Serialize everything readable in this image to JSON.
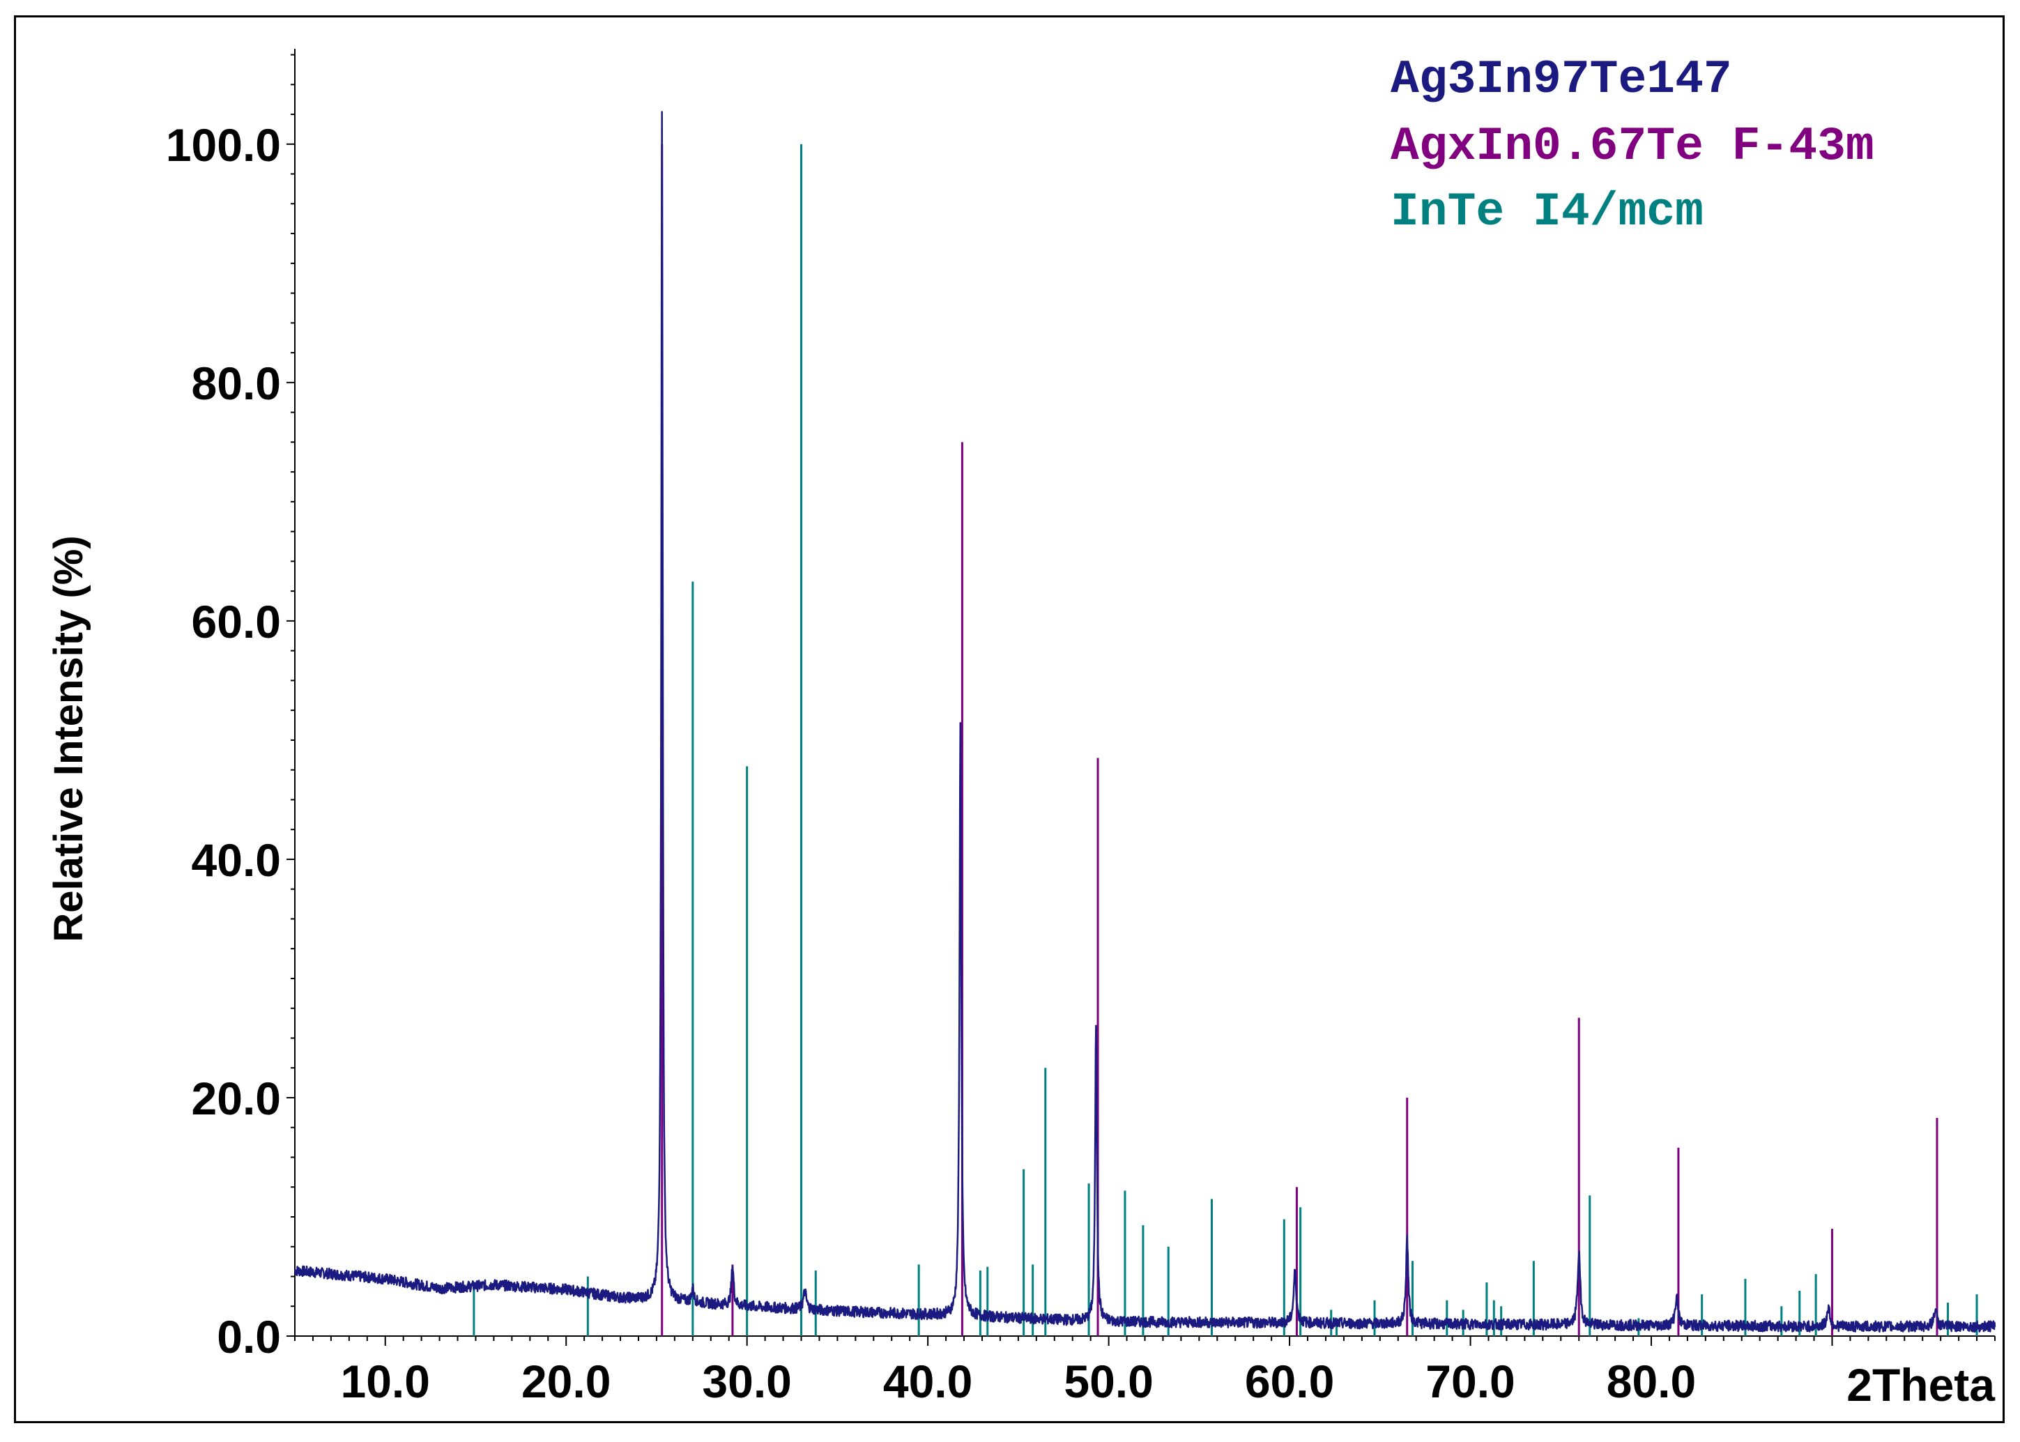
{
  "chart_data": {
    "type": "line",
    "xlabel": "2Theta",
    "ylabel": "Relative Intensity (%)",
    "xlim": [
      5.0,
      99.0
    ],
    "ylim": [
      0,
      108
    ],
    "x_ticks": [
      10.0,
      20.0,
      30.0,
      40.0,
      50.0,
      60.0,
      70.0,
      80.0
    ],
    "x_tick_labels": [
      "10.0",
      "20.0",
      "30.0",
      "40.0",
      "50.0",
      "60.0",
      "70.0",
      "80.0"
    ],
    "y_ticks": [
      0,
      20,
      40,
      60,
      80,
      100
    ],
    "y_tick_labels": [
      "0.0",
      "20.0",
      "40.0",
      "60.0",
      "80.0",
      "100.0"
    ],
    "grid": false,
    "legend_position": "top-right",
    "series": [
      {
        "name": "Ag3In97Te147",
        "style": "line",
        "color": "#1a1a80",
        "background": [
          [
            5.0,
            5.5
          ],
          [
            10.0,
            4.8
          ],
          [
            13.0,
            4.0
          ],
          [
            16.0,
            4.3
          ],
          [
            20.0,
            3.9
          ],
          [
            23.0,
            3.2
          ],
          [
            26.0,
            2.9
          ],
          [
            30.0,
            2.5
          ],
          [
            35.0,
            2.1
          ],
          [
            40.0,
            1.8
          ],
          [
            45.0,
            1.5
          ],
          [
            50.0,
            1.2
          ],
          [
            60.0,
            1.1
          ],
          [
            70.0,
            1.0
          ],
          [
            80.0,
            0.9
          ],
          [
            90.0,
            0.8
          ],
          [
            99.0,
            0.8
          ]
        ],
        "peaks": [
          [
            25.3,
            100.0,
            0.1
          ],
          [
            27.0,
            1.2,
            0.15
          ],
          [
            29.2,
            3.3,
            0.15
          ],
          [
            33.2,
            1.5,
            0.2
          ],
          [
            41.8,
            49.5,
            0.12
          ],
          [
            49.3,
            25.0,
            0.12
          ],
          [
            60.3,
            4.3,
            0.18
          ],
          [
            66.5,
            7.2,
            0.15
          ],
          [
            76.0,
            6.0,
            0.18
          ],
          [
            81.4,
            2.3,
            0.2
          ],
          [
            89.8,
            1.6,
            0.2
          ],
          [
            95.7,
            1.4,
            0.2
          ]
        ]
      },
      {
        "name": "AgxIn0.67Te F-43m",
        "style": "sticks",
        "color": "#800080",
        "peaks": [
          [
            25.3,
            100.0
          ],
          [
            29.2,
            6.0
          ],
          [
            41.9,
            75.0
          ],
          [
            49.4,
            48.5
          ],
          [
            60.4,
            12.5
          ],
          [
            66.5,
            20.0
          ],
          [
            76.0,
            26.7
          ],
          [
            81.5,
            15.8
          ],
          [
            90.0,
            9.0
          ],
          [
            95.8,
            18.3
          ]
        ]
      },
      {
        "name": "InTe I4/mcm",
        "style": "sticks",
        "color": "#008080",
        "peaks": [
          [
            14.9,
            4.0
          ],
          [
            21.2,
            5.0
          ],
          [
            27.0,
            63.3
          ],
          [
            30.0,
            47.8
          ],
          [
            33.0,
            100.0
          ],
          [
            33.8,
            5.5
          ],
          [
            39.5,
            6.0
          ],
          [
            42.9,
            5.5
          ],
          [
            43.3,
            5.8
          ],
          [
            45.3,
            14.0
          ],
          [
            45.8,
            6.0
          ],
          [
            46.5,
            22.5
          ],
          [
            48.9,
            12.8
          ],
          [
            50.9,
            12.2
          ],
          [
            51.9,
            9.3
          ],
          [
            53.3,
            7.5
          ],
          [
            55.7,
            11.5
          ],
          [
            59.7,
            9.8
          ],
          [
            60.6,
            10.8
          ],
          [
            62.3,
            2.2
          ],
          [
            62.6,
            1.5
          ],
          [
            64.7,
            3.0
          ],
          [
            66.8,
            6.3
          ],
          [
            68.7,
            3.0
          ],
          [
            69.6,
            2.2
          ],
          [
            70.9,
            4.5
          ],
          [
            71.3,
            3.0
          ],
          [
            71.7,
            2.5
          ],
          [
            73.5,
            6.3
          ],
          [
            76.6,
            11.8
          ],
          [
            79.3,
            1.5
          ],
          [
            82.8,
            3.5
          ],
          [
            85.2,
            4.8
          ],
          [
            87.2,
            2.5
          ],
          [
            88.2,
            3.8
          ],
          [
            89.1,
            5.2
          ],
          [
            96.4,
            2.8
          ],
          [
            98.0,
            3.5
          ]
        ]
      }
    ]
  }
}
